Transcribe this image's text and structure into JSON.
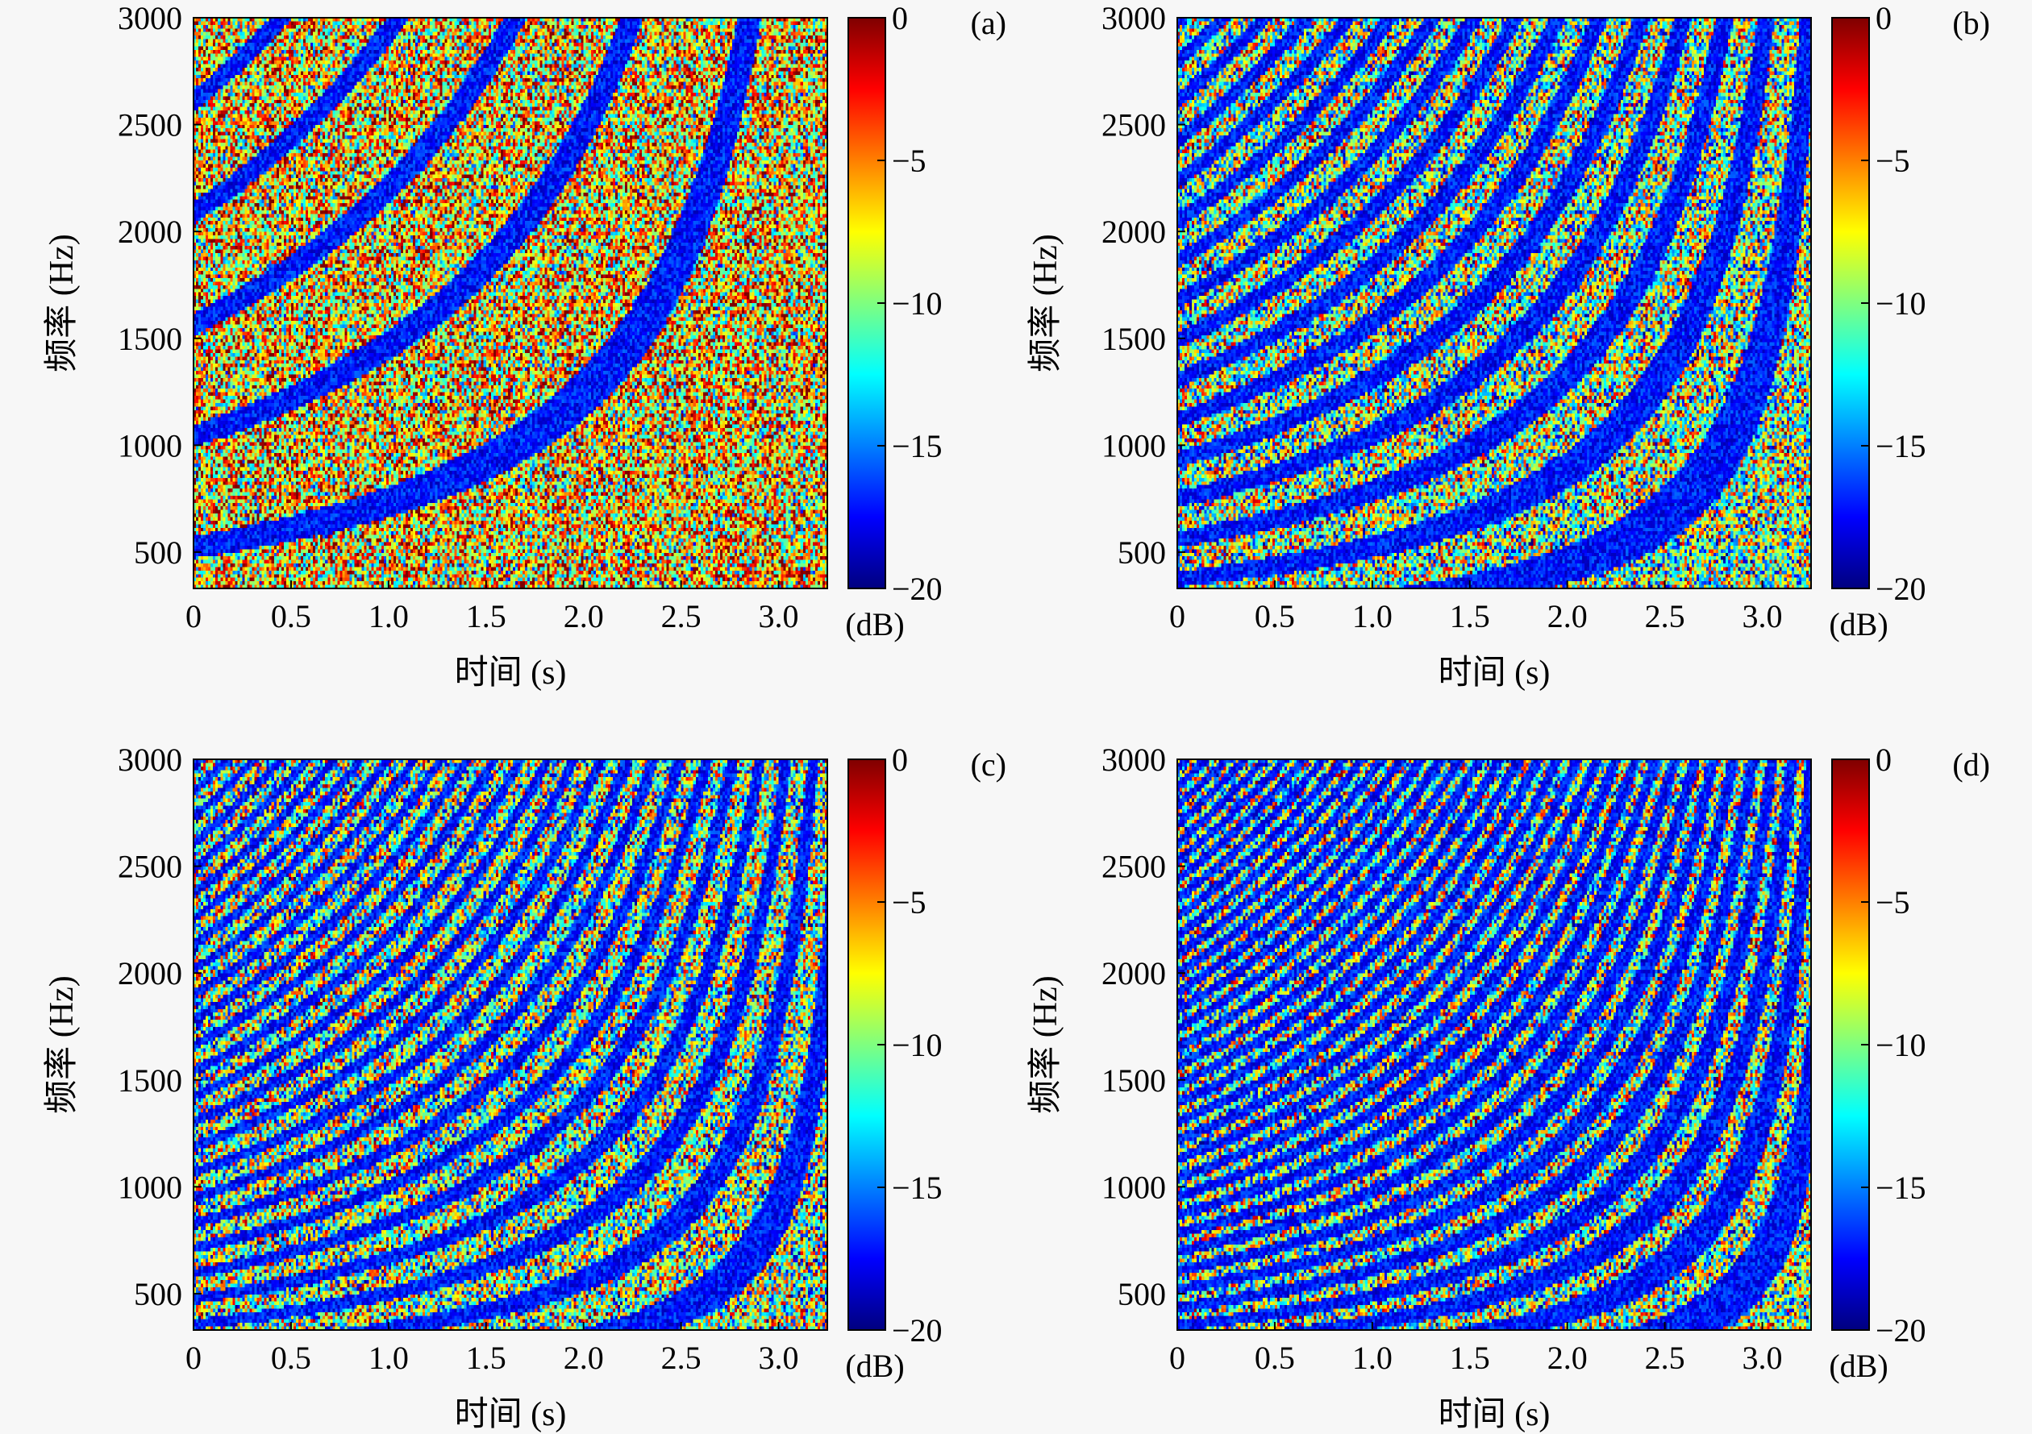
{
  "figure": {
    "colormap": [
      "#00007f",
      "#0000ff",
      "#007fff",
      "#00ffff",
      "#7fff7f",
      "#ffff00",
      "#ff7f00",
      "#ff0000",
      "#7f0000"
    ],
    "colorbar_unit": "(dB)",
    "colorbar_ticks": [
      "0",
      "−5",
      "−10",
      "−15",
      "−20"
    ]
  },
  "chart_data": [
    {
      "type": "heatmap",
      "panel_label": "(a)",
      "title": "",
      "xlabel": "时间 (s)",
      "ylabel": "频率 (Hz)",
      "xlim": [
        0,
        3.25
      ],
      "ylim": [
        330,
        3000
      ],
      "x_ticks": [
        "0",
        "0.5",
        "1.0",
        "1.5",
        "2.0",
        "2.5",
        "3.0"
      ],
      "y_ticks": [
        "500",
        "1000",
        "1500",
        "2000",
        "2500",
        "3000"
      ],
      "color_range_db": [
        -20,
        0
      ],
      "description_of_values": "noisy spectrogram with a few strong low-level (−20 dB) curved striations",
      "striation_count": 5,
      "noise_level_db": -7
    },
    {
      "type": "heatmap",
      "panel_label": "(b)",
      "title": "",
      "xlabel": "时间 (s)",
      "ylabel": "频率 (Hz)",
      "xlim": [
        0,
        3.25
      ],
      "ylim": [
        330,
        3000
      ],
      "x_ticks": [
        "0",
        "0.5",
        "1.0",
        "1.5",
        "2.0",
        "2.5",
        "3.0"
      ],
      "y_ticks": [
        "500",
        "1000",
        "1500",
        "2000",
        "2500",
        "3000"
      ],
      "color_range_db": [
        -20,
        0
      ],
      "striation_count": 14,
      "noise_level_db": -10
    },
    {
      "type": "heatmap",
      "panel_label": "(c)",
      "title": "",
      "xlabel": "时间 (s)",
      "ylabel": "频率 (Hz)",
      "xlim": [
        0,
        3.25
      ],
      "ylim": [
        330,
        3000
      ],
      "x_ticks": [
        "0",
        "0.5",
        "1.0",
        "1.5",
        "2.0",
        "2.5",
        "3.0"
      ],
      "y_ticks": [
        "500",
        "1000",
        "1500",
        "2000",
        "2500",
        "3000"
      ],
      "color_range_db": [
        -20,
        0
      ],
      "striation_count": 22,
      "noise_level_db": -10
    },
    {
      "type": "heatmap",
      "panel_label": "(d)",
      "title": "",
      "xlabel": "时间 (s)",
      "ylabel": "频率 (Hz)",
      "xlim": [
        0,
        3.25
      ],
      "ylim": [
        330,
        3000
      ],
      "x_ticks": [
        "0",
        "0.5",
        "1.0",
        "1.5",
        "2.0",
        "2.5",
        "3.0"
      ],
      "y_ticks": [
        "500",
        "1000",
        "1500",
        "2000",
        "2500",
        "3000"
      ],
      "color_range_db": [
        -20,
        0
      ],
      "striation_count": 30,
      "noise_level_db": -10
    }
  ]
}
